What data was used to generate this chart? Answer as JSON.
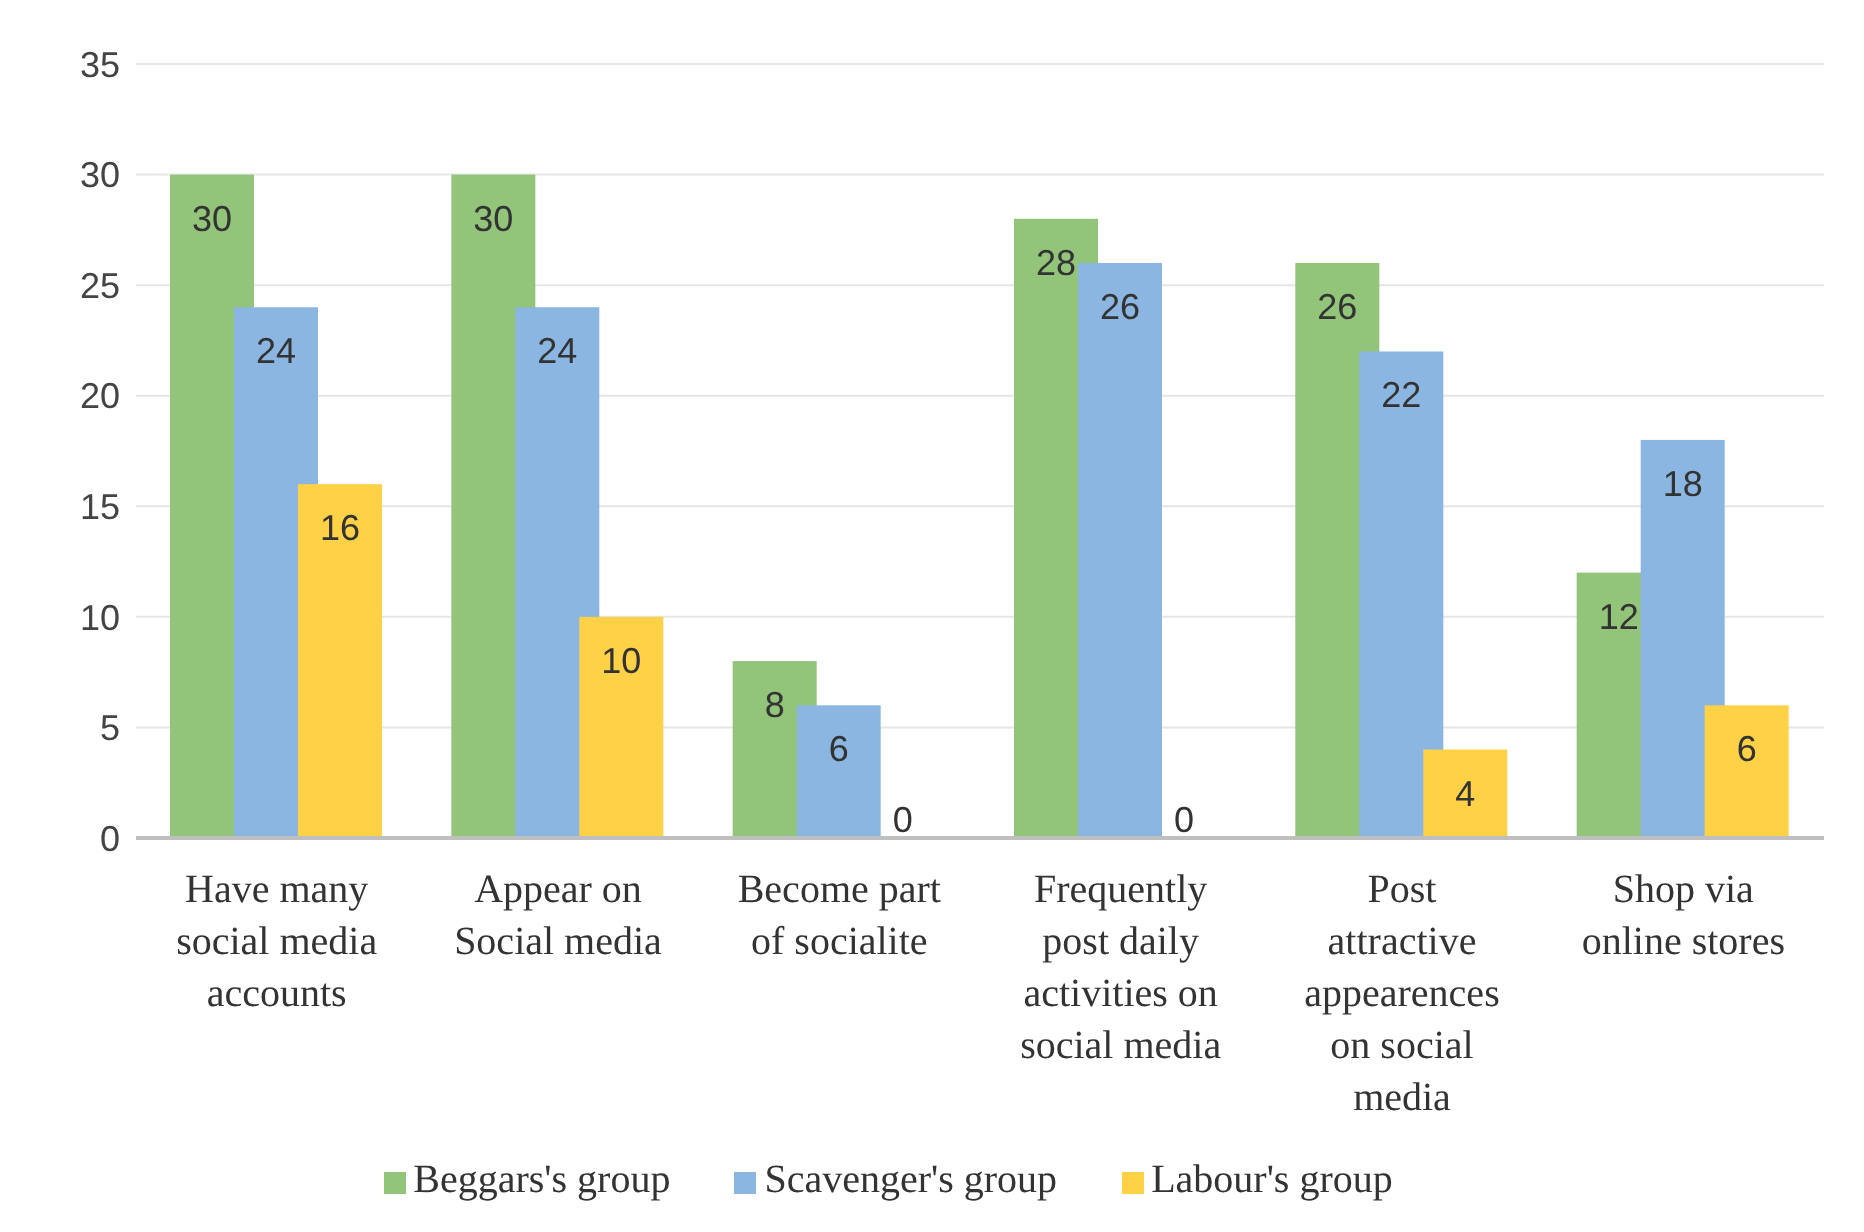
{
  "chart_data": {
    "type": "bar",
    "categories": [
      "Have many social media accounts",
      "Appear on Social media",
      "Become part of socialite",
      "Frequently post daily activities on social media",
      "Post attractive appearences on social media",
      "Shop via online stores"
    ],
    "series": [
      {
        "name": "Beggars's group",
        "color": "#92c47a",
        "values": [
          30,
          30,
          8,
          28,
          26,
          12
        ]
      },
      {
        "name": "Scavenger's group",
        "color": "#8bb6e1",
        "values": [
          24,
          24,
          6,
          26,
          22,
          18
        ]
      },
      {
        "name": "Labour's group",
        "color": "#ffd147",
        "values": [
          16,
          10,
          0,
          0,
          4,
          6
        ]
      }
    ],
    "ylim": [
      0,
      35
    ],
    "yticks": [
      0,
      5,
      10,
      15,
      20,
      25,
      30,
      35
    ],
    "grid": "y",
    "legend": "bottom",
    "data_labels": true
  }
}
